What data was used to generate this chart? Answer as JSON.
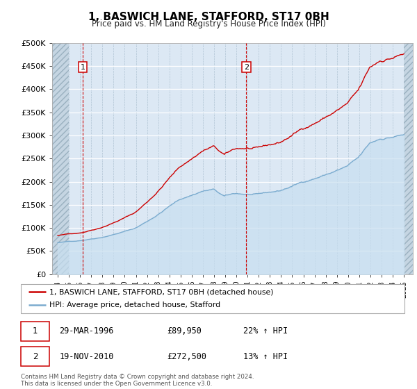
{
  "title": "1, BASWICH LANE, STAFFORD, ST17 0BH",
  "subtitle": "Price paid vs. HM Land Registry's House Price Index (HPI)",
  "ylim": [
    0,
    500000
  ],
  "yticks": [
    0,
    50000,
    100000,
    150000,
    200000,
    250000,
    300000,
    350000,
    400000,
    450000,
    500000
  ],
  "ytick_labels": [
    "£0",
    "£50K",
    "£100K",
    "£150K",
    "£200K",
    "£250K",
    "£300K",
    "£350K",
    "£400K",
    "£450K",
    "£500K"
  ],
  "xlim_start": 1993.5,
  "xlim_end": 2025.8,
  "hatch_left_end": 1995.0,
  "hatch_right_start": 2025.0,
  "sale1_date": 1996.24,
  "sale1_price": 89950,
  "sale2_date": 2010.89,
  "sale2_price": 272500,
  "property_line_color": "#cc0000",
  "hpi_line_color": "#7aabcf",
  "hpi_fill_color": "#c8dff0",
  "fig_bg_color": "#ffffff",
  "plot_bg_color": "#dce8f4",
  "hatch_bg_color": "#c5d5e2",
  "legend_label_property": "1, BASWICH LANE, STAFFORD, ST17 0BH (detached house)",
  "legend_label_hpi": "HPI: Average price, detached house, Stafford",
  "annotation1_label": "1",
  "annotation1_date": "29-MAR-1996",
  "annotation1_price": "£89,950",
  "annotation1_hpi": "22% ↑ HPI",
  "annotation2_label": "2",
  "annotation2_date": "19-NOV-2010",
  "annotation2_price": "£272,500",
  "annotation2_hpi": "13% ↑ HPI",
  "footer": "Contains HM Land Registry data © Crown copyright and database right 2024.\nThis data is licensed under the Open Government Licence v3.0.",
  "hpi_base_value": 68000,
  "hpi_seed": 42
}
